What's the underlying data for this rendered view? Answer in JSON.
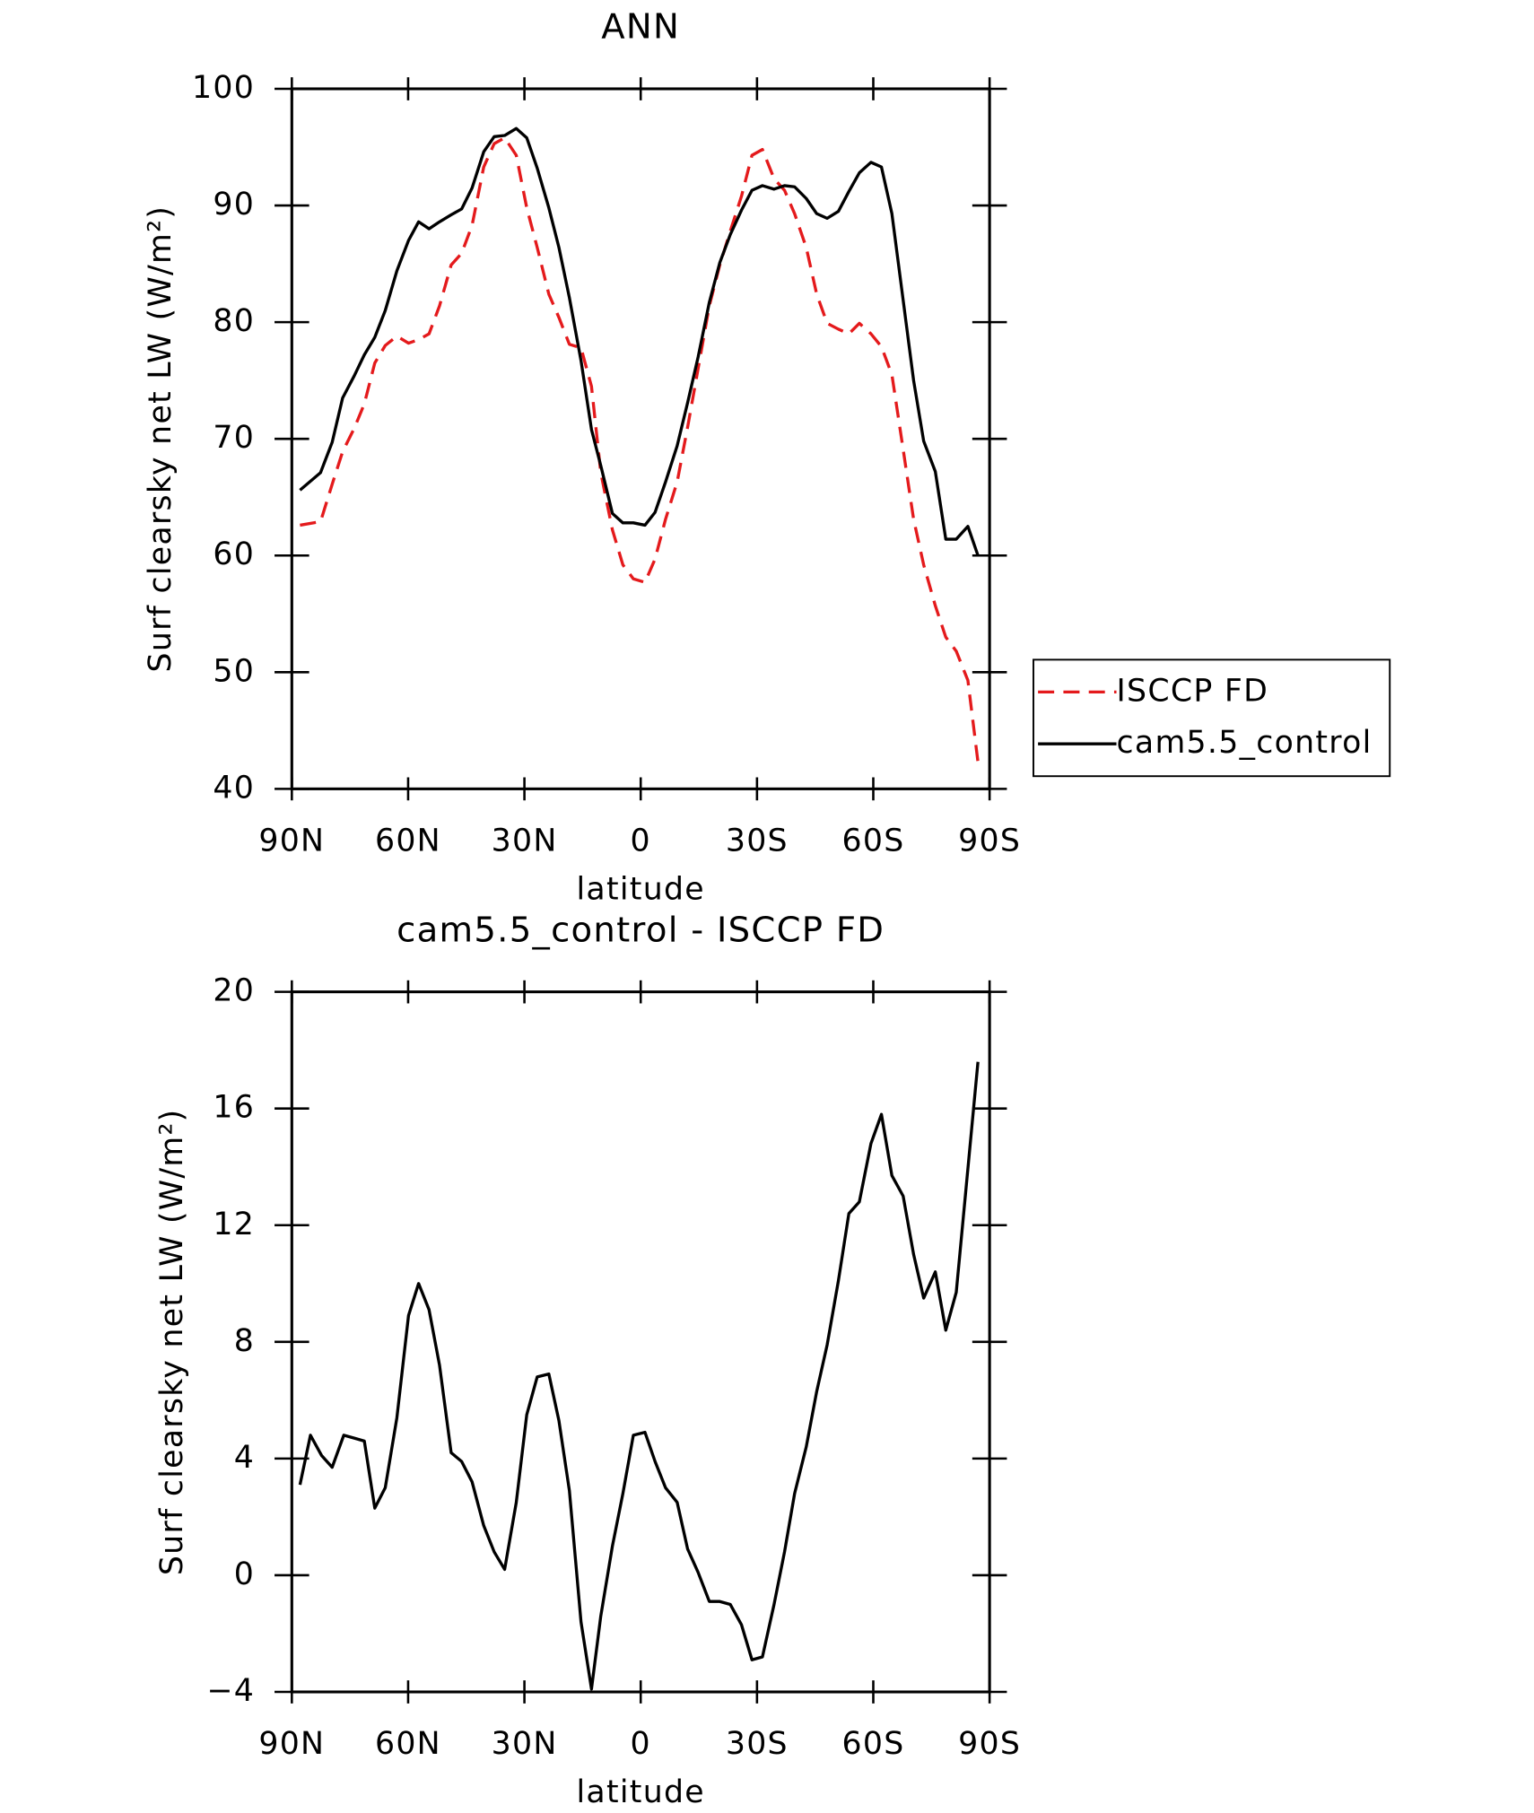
{
  "chart_data": [
    {
      "type": "line",
      "title": "ANN",
      "xlabel": "latitude",
      "ylabel": "Surf clearsky net LW (W/m²)",
      "x": [
        87.9,
        82.6,
        79.6,
        76.9,
        73.9,
        71.3,
        68.6,
        65.9,
        62.9,
        59.9,
        57.3,
        54.6,
        51.9,
        48.9,
        46.2,
        43.5,
        40.5,
        37.8,
        35.1,
        32.1,
        29.4,
        26.7,
        23.7,
        21.1,
        18.4,
        15.4,
        12.7,
        10.3,
        7.3,
        4.6,
        1.9,
        -1.1,
        -3.7,
        -6.4,
        -9.4,
        -12.1,
        -14.8,
        -17.7,
        -20.4,
        -23.1,
        -26.0,
        -28.7,
        -31.4,
        -34.4,
        -37.1,
        -39.7,
        -42.7,
        -45.4,
        -48.1,
        -51.0,
        -53.7,
        -56.4,
        -59.4,
        -62.1,
        -64.8,
        -67.7,
        -70.4,
        -73.0,
        -76.0,
        -78.7,
        -81.4,
        -84.4,
        -87.0
      ],
      "series": [
        {
          "name": "ISCCP FD",
          "color": "#e41a1c",
          "dash": true,
          "values": [
            62.6,
            62.9,
            66.1,
            68.9,
            70.9,
            73.0,
            76.5,
            78.0,
            78.8,
            78.2,
            78.5,
            79.0,
            81.4,
            84.9,
            85.9,
            88.3,
            93.3,
            95.3,
            95.8,
            94.3,
            89.8,
            86.4,
            82.4,
            80.4,
            78.1,
            77.8,
            74.5,
            67.1,
            62.2,
            59.2,
            58.0,
            57.7,
            59.7,
            63.1,
            66.3,
            71.0,
            76.0,
            81.4,
            84.9,
            87.8,
            90.8,
            94.3,
            94.8,
            92.3,
            91.3,
            89.3,
            86.4,
            82.4,
            79.9,
            79.4,
            79.0,
            79.9,
            79.0,
            77.9,
            75.5,
            69.1,
            63.1,
            59.2,
            55.7,
            53.0,
            51.8,
            49.3,
            42.3
          ]
        },
        {
          "name": "cam5.5_control",
          "color": "#000000",
          "dash": false,
          "values": [
            65.6,
            67.1,
            69.7,
            73.5,
            75.4,
            77.2,
            78.7,
            81.0,
            84.4,
            87.0,
            88.6,
            88.0,
            88.6,
            89.2,
            89.7,
            91.5,
            94.6,
            95.9,
            96.0,
            96.6,
            95.8,
            93.2,
            89.8,
            86.4,
            82.1,
            76.7,
            70.8,
            67.7,
            63.6,
            62.8,
            62.8,
            62.6,
            63.7,
            66.3,
            69.4,
            73.1,
            77.0,
            81.7,
            85.1,
            87.5,
            89.6,
            91.3,
            91.7,
            91.4,
            91.7,
            91.6,
            90.6,
            89.3,
            88.9,
            89.5,
            91.2,
            92.8,
            93.7,
            93.3,
            89.3,
            81.9,
            75.0,
            69.8,
            67.2,
            61.4,
            61.4,
            62.5,
            60.0
          ]
        }
      ],
      "xlim": [
        90,
        -90
      ],
      "xticks": [
        {
          "value": 90,
          "label": "90N"
        },
        {
          "value": 60,
          "label": "60N"
        },
        {
          "value": 30,
          "label": "30N"
        },
        0,
        {
          "value": -30,
          "label": "30S"
        },
        {
          "value": -60,
          "label": "60S"
        },
        {
          "value": -90,
          "label": "90S"
        }
      ],
      "ylim": [
        40,
        100
      ],
      "yticks": [
        40,
        50,
        60,
        70,
        80,
        90,
        100
      ],
      "legend": "right"
    },
    {
      "type": "line",
      "title": "cam5.5_control - ISCCP FD",
      "xlabel": "latitude",
      "ylabel": "Surf clearsky net LW (W/m²)",
      "x": [
        87.9,
        85.2,
        82.3,
        79.6,
        76.6,
        73.9,
        71.3,
        68.6,
        65.9,
        62.9,
        59.9,
        57.3,
        54.6,
        51.9,
        48.9,
        46.2,
        43.5,
        40.5,
        37.8,
        35.1,
        32.1,
        29.4,
        26.7,
        23.7,
        21.1,
        18.4,
        15.4,
        12.7,
        10.3,
        7.3,
        4.6,
        1.9,
        -1.1,
        -3.7,
        -6.4,
        -9.4,
        -12.1,
        -14.8,
        -17.7,
        -20.4,
        -23.1,
        -26.0,
        -28.7,
        -31.4,
        -34.4,
        -37.1,
        -39.7,
        -42.7,
        -45.4,
        -48.1,
        -51.0,
        -53.7,
        -56.4,
        -59.4,
        -62.1,
        -64.8,
        -67.7,
        -70.4,
        -73.0,
        -76.0,
        -78.7,
        -81.4,
        -87.0
      ],
      "series": [
        {
          "color": "#000000",
          "dash": false,
          "values": [
            3.1,
            4.8,
            4.1,
            3.7,
            4.8,
            4.7,
            4.6,
            2.3,
            3.0,
            5.4,
            8.9,
            10.0,
            9.1,
            7.2,
            4.2,
            3.9,
            3.2,
            1.7,
            0.8,
            0.2,
            2.5,
            5.5,
            6.8,
            6.9,
            5.3,
            2.9,
            -1.6,
            -3.9,
            -1.4,
            1.0,
            2.8,
            4.8,
            4.9,
            3.9,
            3.0,
            2.5,
            0.9,
            0.1,
            -0.9,
            -0.9,
            -1.0,
            -1.7,
            -2.9,
            -2.8,
            -1.0,
            0.8,
            2.8,
            4.4,
            6.3,
            7.9,
            10.1,
            12.4,
            12.8,
            14.8,
            15.8,
            13.7,
            13.0,
            11.0,
            9.5,
            10.4,
            8.4,
            9.7,
            17.6
          ]
        }
      ],
      "xlim": [
        90,
        -90
      ],
      "xticks": [
        {
          "value": 90,
          "label": "90N"
        },
        {
          "value": 60,
          "label": "60N"
        },
        {
          "value": 30,
          "label": "30N"
        },
        0,
        {
          "value": -30,
          "label": "30S"
        },
        {
          "value": -60,
          "label": "60S"
        },
        {
          "value": -90,
          "label": "90S"
        }
      ],
      "ylim": [
        -4,
        20
      ],
      "yticks": [
        {
          "value": -4,
          "label": "−4"
        },
        0,
        4,
        8,
        12,
        16,
        20
      ]
    }
  ]
}
